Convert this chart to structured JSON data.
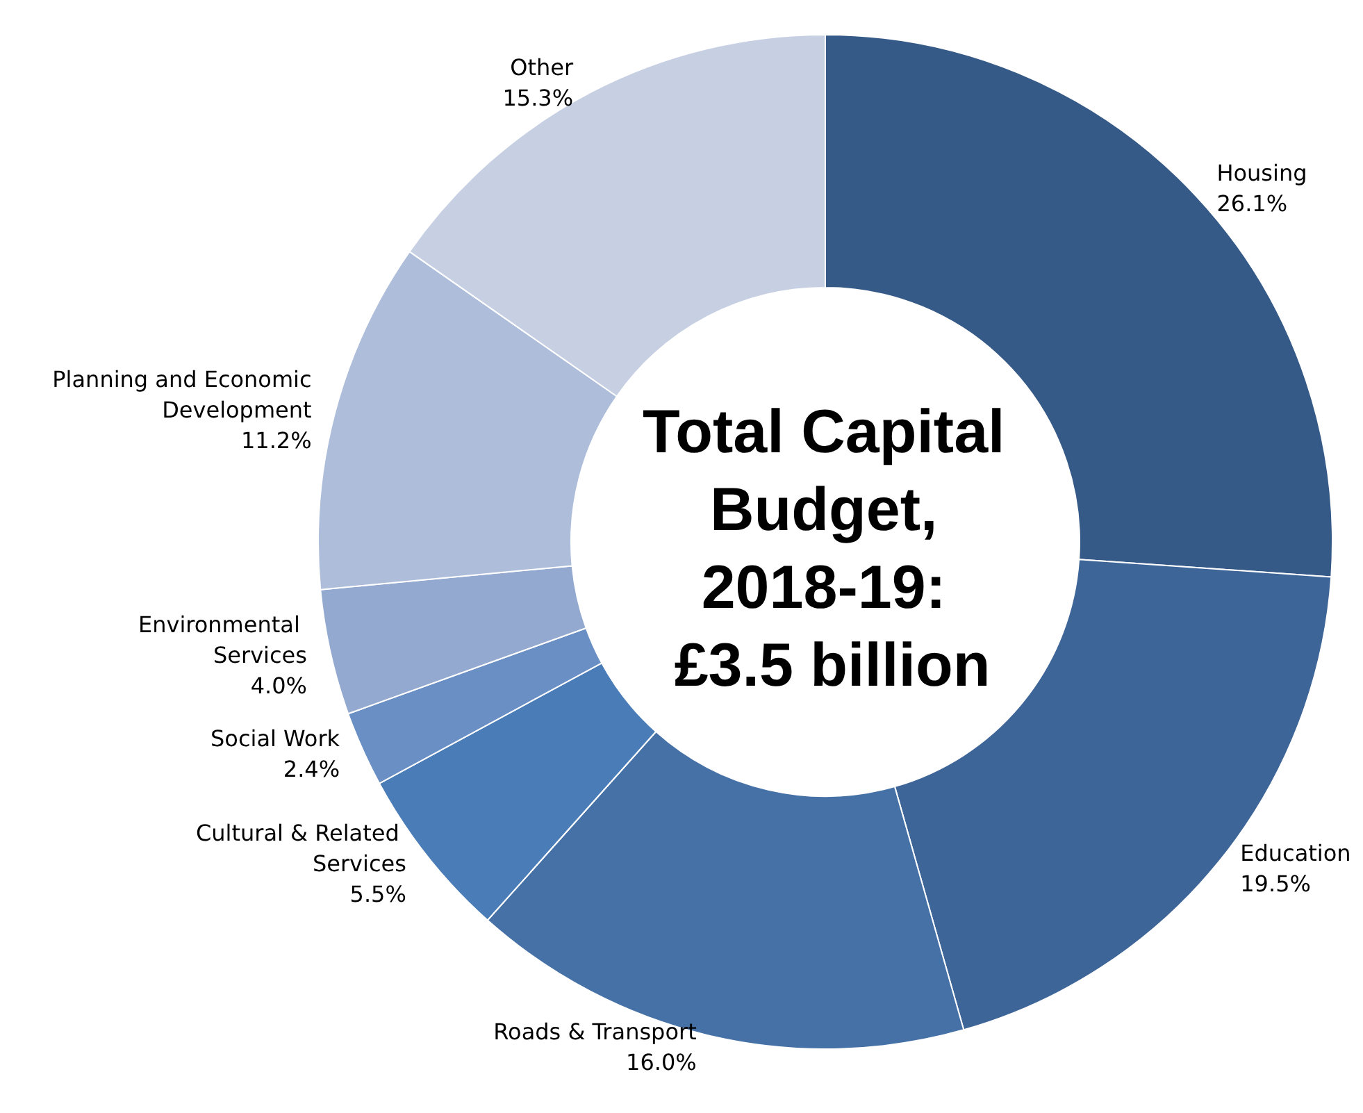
{
  "chart_data": {
    "type": "donut",
    "title": "Total Capital Budget, 2018-19: £3.5 billion",
    "categories": [
      "Housing",
      "Education",
      "Roads & Transport",
      "Cultural & Related Services",
      "Social Work",
      "Environmental Services",
      "Planning and Economic Development",
      "Other"
    ],
    "values": [
      26.1,
      19.5,
      16.0,
      5.5,
      2.4,
      4.0,
      11.2,
      15.3
    ],
    "value_labels": [
      "26.1%",
      "19.5%",
      "16.0%",
      "5.5%",
      "2.4%",
      "4.0%",
      "11.2%",
      "15.3%"
    ],
    "colors": [
      "#365a87",
      "#3e6598",
      "#4571a7",
      "#4a7db8",
      "#6a8fc4",
      "#94a9d0",
      "#adbdda",
      "#c7d0e3"
    ],
    "legend": false
  }
}
